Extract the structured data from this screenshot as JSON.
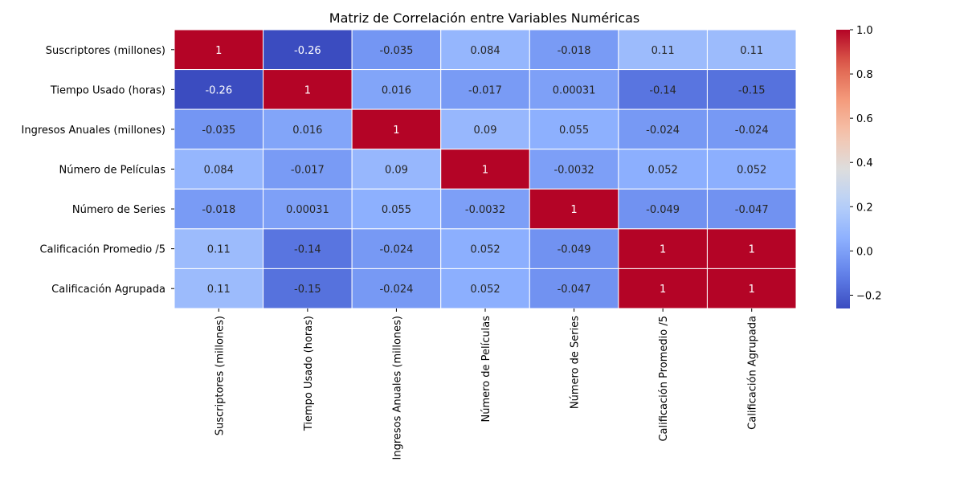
{
  "chart_data": {
    "type": "heatmap",
    "title": "Matriz de Correlación entre Variables Numéricas",
    "colormap": "coolwarm",
    "grid": false,
    "legend": "colorbar-right",
    "rows": [
      "Suscriptores (millones)",
      "Tiempo Usado (horas)",
      "Ingresos Anuales (millones)",
      "Número de Películas",
      "Número de Series",
      "Calificación Promedio /5",
      "Calificación Agrupada"
    ],
    "columns": [
      "Suscriptores (millones)",
      "Tiempo Usado (horas)",
      "Ingresos Anuales (millones)",
      "Número de Películas",
      "Número de Series",
      "Calificación Promedio /5",
      "Calificación Agrupada"
    ],
    "values": [
      [
        1,
        -0.26,
        -0.035,
        0.084,
        -0.018,
        0.11,
        0.11
      ],
      [
        -0.26,
        1,
        0.016,
        -0.017,
        0.00031,
        -0.14,
        -0.15
      ],
      [
        -0.035,
        0.016,
        1,
        0.09,
        0.055,
        -0.024,
        -0.024
      ],
      [
        0.084,
        -0.017,
        0.09,
        1,
        -0.0032,
        0.052,
        0.052
      ],
      [
        -0.018,
        0.00031,
        0.055,
        -0.0032,
        1,
        -0.049,
        -0.047
      ],
      [
        0.11,
        -0.14,
        -0.024,
        0.052,
        -0.049,
        1,
        1
      ],
      [
        0.11,
        -0.15,
        -0.024,
        0.052,
        -0.047,
        1,
        1
      ]
    ],
    "labels": [
      [
        "1",
        "-0.26",
        "-0.035",
        "0.084",
        "-0.018",
        "0.11",
        "0.11"
      ],
      [
        "-0.26",
        "1",
        "0.016",
        "-0.017",
        "0.00031",
        "-0.14",
        "-0.15"
      ],
      [
        "-0.035",
        "0.016",
        "1",
        "0.09",
        "0.055",
        "-0.024",
        "-0.024"
      ],
      [
        "0.084",
        "-0.017",
        "0.09",
        "1",
        "-0.0032",
        "0.052",
        "0.052"
      ],
      [
        "-0.018",
        "0.00031",
        "0.055",
        "-0.0032",
        "1",
        "-0.049",
        "-0.047"
      ],
      [
        "0.11",
        "-0.14",
        "-0.024",
        "0.052",
        "-0.049",
        "1",
        "1"
      ],
      [
        "0.11",
        "-0.15",
        "-0.024",
        "0.052",
        "-0.047",
        "1",
        "1"
      ]
    ],
    "vmin": -0.26,
    "vmax": 1,
    "colorbar_ticks": [
      {
        "value": -0.2,
        "label": "−0.2"
      },
      {
        "value": 0.0,
        "label": "0.0"
      },
      {
        "value": 0.2,
        "label": "0.2"
      },
      {
        "value": 0.4,
        "label": "0.4"
      },
      {
        "value": 0.6,
        "label": "0.6"
      },
      {
        "value": 0.8,
        "label": "0.8"
      },
      {
        "value": 1.0,
        "label": "1.0"
      }
    ]
  }
}
